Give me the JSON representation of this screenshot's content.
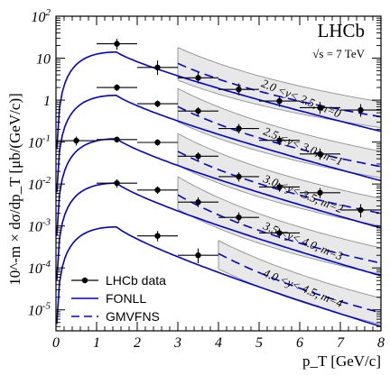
{
  "chart_data": {
    "type": "scatter",
    "experiment_label": "LHCb",
    "energy_label": "√s = 7 TeV",
    "xlabel": "p_T [GeV/c]",
    "ylabel": "10^-m × dσ/dp_T [μb/(GeV/c)]",
    "xlim": [
      0,
      8
    ],
    "ylim_log10": [
      -5.5,
      2
    ],
    "x_ticks": [
      "0",
      "1",
      "2",
      "3",
      "4",
      "5",
      "6",
      "7",
      "8"
    ],
    "y_ticks": [
      "10^-5",
      "10^-4",
      "10^-3",
      "10^-2",
      "10^-1",
      "1",
      "10",
      "10^2"
    ],
    "legend": {
      "position": "bottom-left",
      "entries": [
        "LHCb data",
        "FONLL",
        "GMVFNS"
      ]
    },
    "colors": {
      "fonll": "#0000d6",
      "gmvfns": "#0000d6",
      "band_fill": "#e8e8e8",
      "band_edge": "#909090",
      "data": "#000000"
    },
    "series": [
      {
        "rapidity_label": "2.0 <y< 2.5, m=0",
        "data": [
          {
            "x": 1.5,
            "xerr": 0.5,
            "y": 22,
            "ylo": 16,
            "yhi": 29
          },
          {
            "x": 2.5,
            "xerr": 0.5,
            "y": 6.0,
            "ylo": 4.0,
            "yhi": 8.8
          },
          {
            "x": 3.5,
            "xerr": 0.5,
            "y": 3.4,
            "ylo": 2.5,
            "yhi": 4.6
          },
          {
            "x": 4.5,
            "xerr": 0.5,
            "y": 1.8,
            "ylo": 1.3,
            "yhi": 2.5
          },
          {
            "x": 5.5,
            "xerr": 0.5,
            "y": 0.95,
            "ylo": 0.7,
            "yhi": 1.25
          },
          {
            "x": 6.5,
            "xerr": 0.5,
            "y": 0.66,
            "ylo": 0.47,
            "yhi": 0.9
          },
          {
            "x": 7.5,
            "xerr": 0.5,
            "y": 0.58,
            "ylo": 0.4,
            "yhi": 0.8
          }
        ],
        "fonll": {
          "peak": 14.0,
          "pt_peak": 1.5,
          "y_at_8": 0.18
        },
        "gmvfns": {
          "x_start": 3,
          "y_at_3": 7.5,
          "y_at_8": 0.4
        },
        "band": {
          "x_start": 3,
          "upper_at_3": 18,
          "upper_at_8": 0.9,
          "lower_at_3": 3.0,
          "lower_at_8": 0.22
        }
      },
      {
        "rapidity_label": "2.5 <y< 3.0, m=1",
        "data": [
          {
            "x": 1.5,
            "xerr": 0.5,
            "y": 2.0,
            "ylo": 1.65,
            "yhi": 2.4
          },
          {
            "x": 2.5,
            "xerr": 0.5,
            "y": 0.82,
            "ylo": 0.68,
            "yhi": 0.98
          },
          {
            "x": 3.5,
            "xerr": 0.5,
            "y": 0.55,
            "ylo": 0.43,
            "yhi": 0.68
          },
          {
            "x": 4.5,
            "xerr": 0.5,
            "y": 0.21,
            "ylo": 0.16,
            "yhi": 0.27
          },
          {
            "x": 5.5,
            "xerr": 0.5,
            "y": 0.11,
            "ylo": 0.085,
            "yhi": 0.14
          },
          {
            "x": 6.5,
            "xerr": 0.5,
            "y": 0.052,
            "ylo": 0.038,
            "yhi": 0.07
          }
        ],
        "fonll": {
          "peak": 1.3,
          "pt_peak": 1.5,
          "y_at_8": 0.012
        },
        "gmvfns": {
          "x_start": 3,
          "y_at_3": 0.7,
          "y_at_8": 0.026
        },
        "band": {
          "x_start": 3,
          "upper_at_3": 1.9,
          "upper_at_8": 0.06,
          "lower_at_3": 0.3,
          "lower_at_8": 0.014
        }
      },
      {
        "rapidity_label": "3.0 <y< 3.5, m=2",
        "data": [
          {
            "x": 0.5,
            "xerr": 0.5,
            "y": 0.108,
            "ylo": 0.083,
            "yhi": 0.135
          },
          {
            "x": 1.5,
            "xerr": 0.5,
            "y": 0.115,
            "ylo": 0.097,
            "yhi": 0.135
          },
          {
            "x": 2.5,
            "xerr": 0.5,
            "y": 0.098,
            "ylo": 0.082,
            "yhi": 0.116
          },
          {
            "x": 3.5,
            "xerr": 0.5,
            "y": 0.046,
            "ylo": 0.036,
            "yhi": 0.057
          },
          {
            "x": 4.5,
            "xerr": 0.5,
            "y": 0.015,
            "ylo": 0.0115,
            "yhi": 0.019
          },
          {
            "x": 5.5,
            "xerr": 0.5,
            "y": 0.0085,
            "ylo": 0.0066,
            "yhi": 0.0106
          },
          {
            "x": 6.5,
            "xerr": 0.5,
            "y": 0.0062,
            "ylo": 0.0046,
            "yhi": 0.008
          },
          {
            "x": 7.5,
            "xerr": 0.5,
            "y": 0.0024,
            "ylo": 0.0016,
            "yhi": 0.0033
          }
        ],
        "fonll": {
          "peak": 0.12,
          "pt_peak": 1.5,
          "y_at_8": 0.0009
        },
        "gmvfns": {
          "x_start": 3,
          "y_at_3": 0.06,
          "y_at_8": 0.002
        },
        "band": {
          "x_start": 3,
          "upper_at_3": 0.16,
          "upper_at_8": 0.0045,
          "lower_at_3": 0.028,
          "lower_at_8": 0.001
        }
      },
      {
        "rapidity_label": "3.5 <y< 4.0, m=3",
        "data": [
          {
            "x": 1.5,
            "xerr": 0.5,
            "y": 0.0105,
            "ylo": 0.0082,
            "yhi": 0.013
          },
          {
            "x": 2.5,
            "xerr": 0.5,
            "y": 0.0072,
            "ylo": 0.0058,
            "yhi": 0.0088
          },
          {
            "x": 3.5,
            "xerr": 0.5,
            "y": 0.0037,
            "ylo": 0.0028,
            "yhi": 0.0048
          },
          {
            "x": 4.5,
            "xerr": 0.5,
            "y": 0.0016,
            "ylo": 0.0012,
            "yhi": 0.0021
          },
          {
            "x": 5.5,
            "xerr": 0.5,
            "y": 0.00068,
            "ylo": 0.00051,
            "yhi": 0.00088
          }
        ],
        "fonll": {
          "peak": 0.0105,
          "pt_peak": 1.5,
          "y_at_8": 6.5e-05
        },
        "gmvfns": {
          "x_start": 3,
          "y_at_3": 0.0055,
          "y_at_8": 0.00013
        },
        "band": {
          "x_start": 3,
          "upper_at_3": 0.015,
          "upper_at_8": 0.0003,
          "lower_at_3": 0.0025,
          "lower_at_8": 7e-05
        }
      },
      {
        "rapidity_label": "4.0 <y< 4.5, m=4",
        "data": [
          {
            "x": 2.5,
            "xerr": 0.5,
            "y": 0.00058,
            "ylo": 0.00043,
            "yhi": 0.00076
          },
          {
            "x": 3.5,
            "xerr": 0.5,
            "y": 0.0002,
            "ylo": 0.00013,
            "yhi": 0.00029
          }
        ],
        "fonll": {
          "peak": 0.00095,
          "pt_peak": 1.5,
          "y_at_8": 4e-06
        },
        "gmvfns": {
          "x_start": 4,
          "y_at_4": 0.00022,
          "y_at_8": 8.5e-06
        },
        "band": {
          "x_start": 4,
          "upper_at_4": 0.00045,
          "upper_at_8": 1.9e-05,
          "lower_at_4": 9.5e-05,
          "lower_at_8": 4.5e-06
        }
      }
    ]
  }
}
